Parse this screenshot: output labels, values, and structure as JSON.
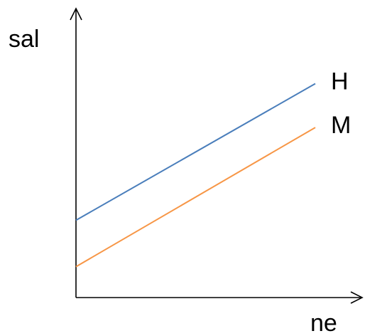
{
  "chart_data": {
    "type": "line",
    "title": "",
    "xlabel": "ne",
    "ylabel": "sal",
    "xlim": [
      0,
      10
    ],
    "ylim": [
      0,
      10
    ],
    "grid": false,
    "legend": "none",
    "series": [
      {
        "name": "H",
        "x": [
          0,
          10
        ],
        "y": [
          3.0,
          8.3
        ],
        "color": "#4a7ebb"
      },
      {
        "name": "M",
        "x": [
          0,
          10
        ],
        "y": [
          1.2,
          6.6
        ],
        "color": "#f79646"
      }
    ]
  }
}
